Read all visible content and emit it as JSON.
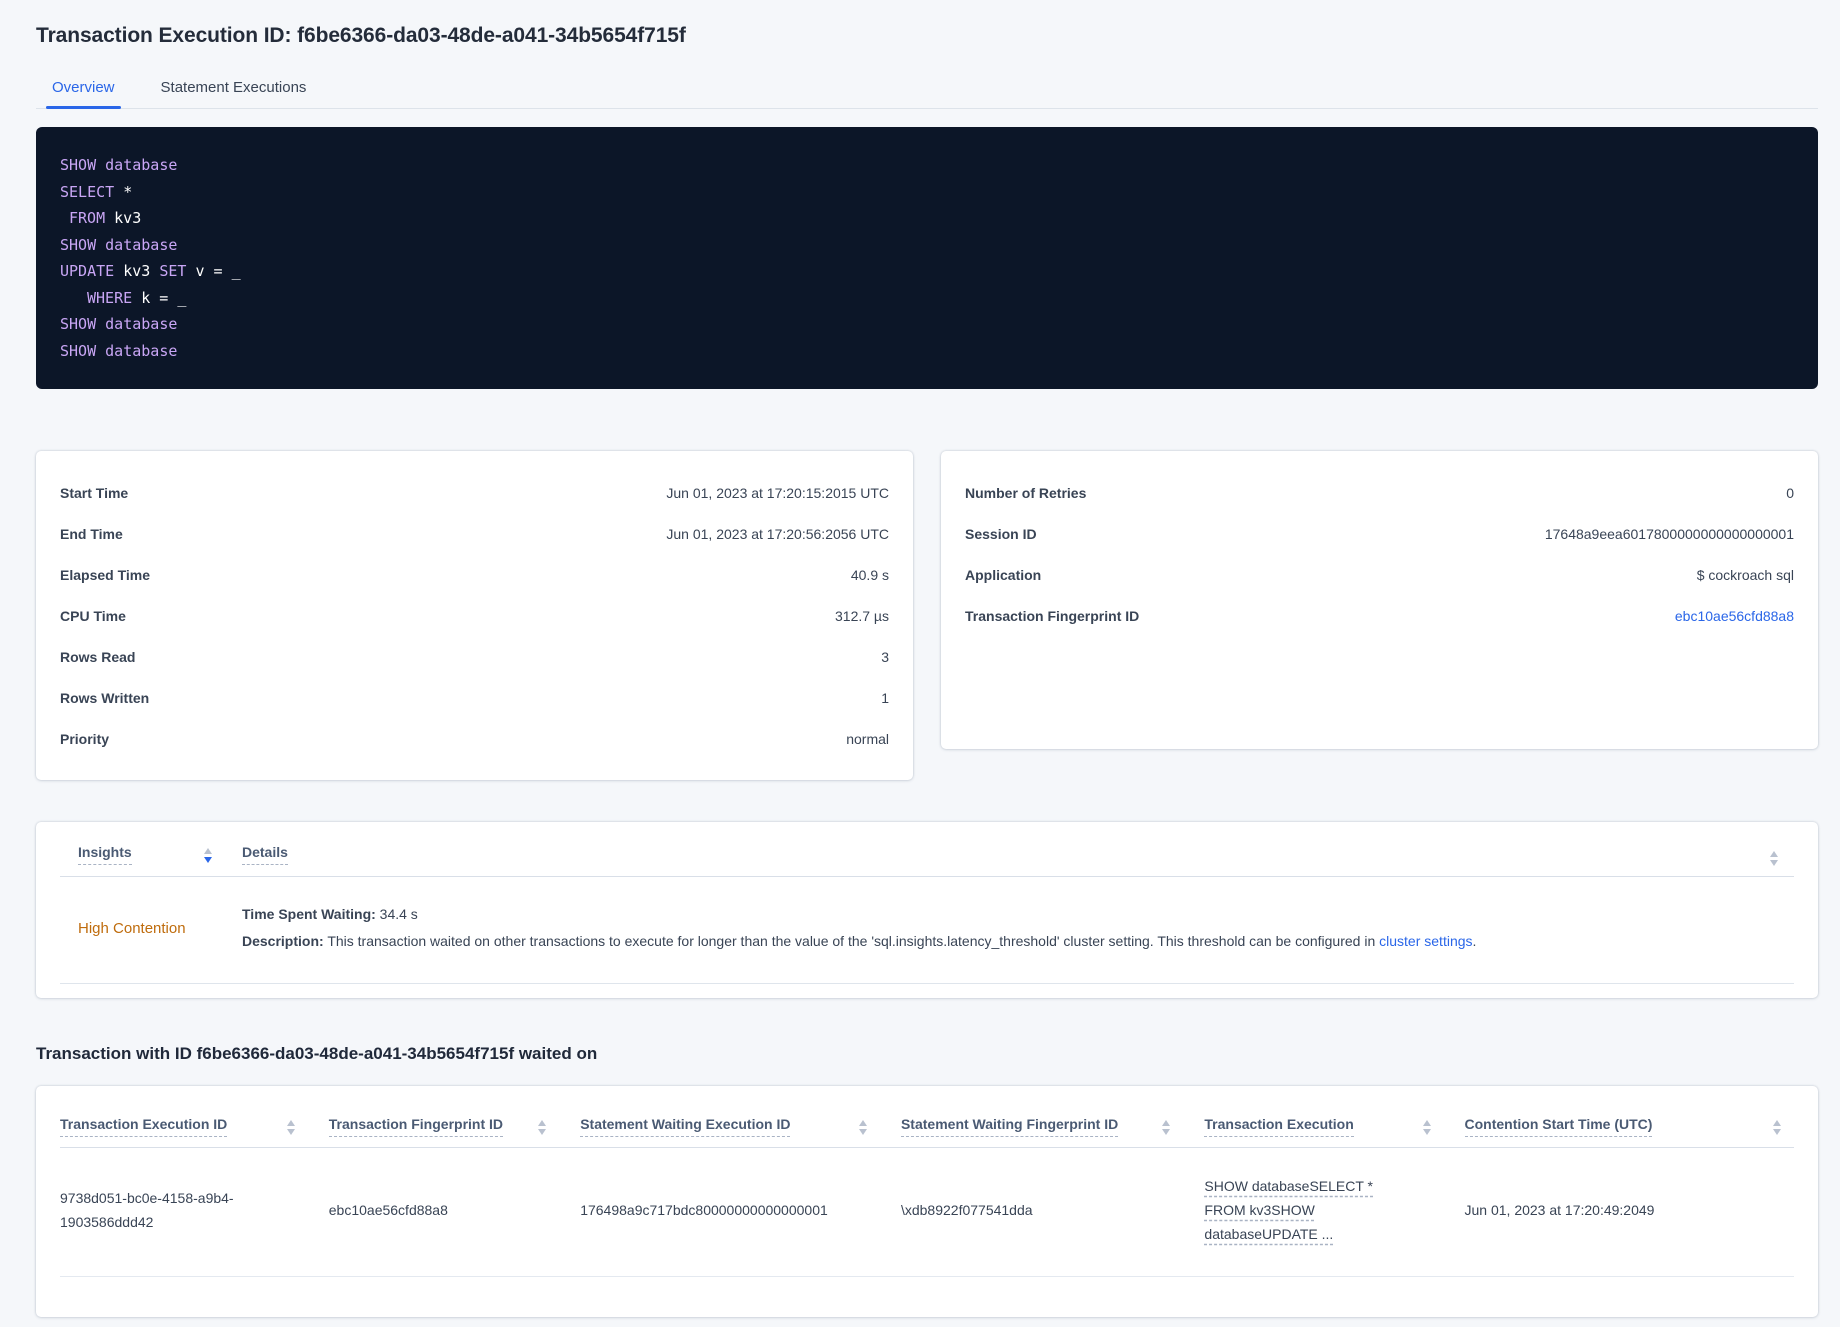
{
  "header": {
    "title": "Transaction Execution ID: f6be6366-da03-48de-a041-34b5654f715f"
  },
  "tabs": [
    {
      "label": "Overview",
      "active": true
    },
    {
      "label": "Statement Executions",
      "active": false
    }
  ],
  "sql_box": {
    "lines": [
      {
        "indent": 0,
        "tokens": [
          {
            "text": "SHOW",
            "kw": true
          },
          {
            "text": "database",
            "kw": true
          }
        ]
      },
      {
        "indent": 0,
        "tokens": [
          {
            "text": "SELECT",
            "kw": true
          },
          {
            "text": "*",
            "kw": false
          }
        ]
      },
      {
        "indent": 1,
        "tokens": [
          {
            "text": "FROM",
            "kw": true
          },
          {
            "text": "kv3",
            "kw": false
          }
        ]
      },
      {
        "indent": 0,
        "tokens": [
          {
            "text": "SHOW",
            "kw": true
          },
          {
            "text": "database",
            "kw": true
          }
        ]
      },
      {
        "indent": 0,
        "tokens": [
          {
            "text": "UPDATE",
            "kw": true
          },
          {
            "text": "kv3",
            "kw": false
          },
          {
            "text": "SET",
            "kw": true
          },
          {
            "text": "v",
            "kw": false
          },
          {
            "text": "=",
            "kw": false
          },
          {
            "text": "_",
            "kw": false
          }
        ]
      },
      {
        "indent": 3,
        "tokens": [
          {
            "text": "WHERE",
            "kw": true
          },
          {
            "text": "k",
            "kw": false
          },
          {
            "text": "=",
            "kw": false
          },
          {
            "text": "_",
            "kw": false
          }
        ]
      },
      {
        "indent": 0,
        "tokens": [
          {
            "text": "SHOW",
            "kw": true
          },
          {
            "text": "database",
            "kw": true
          }
        ]
      },
      {
        "indent": 0,
        "tokens": [
          {
            "text": "SHOW",
            "kw": true
          },
          {
            "text": "database",
            "kw": true
          }
        ]
      }
    ]
  },
  "summary_left": {
    "rows": [
      {
        "label": "Start Time",
        "value": "Jun 01, 2023 at 17:20:15:2015 UTC"
      },
      {
        "label": "End Time",
        "value": "Jun 01, 2023 at 17:20:56:2056 UTC"
      },
      {
        "label": "Elapsed Time",
        "value": "40.9 s"
      },
      {
        "label": "CPU Time",
        "value": "312.7 µs"
      },
      {
        "label": "Rows Read",
        "value": "3"
      },
      {
        "label": "Rows Written",
        "value": "1"
      },
      {
        "label": "Priority",
        "value": "normal"
      }
    ]
  },
  "summary_right": {
    "rows": [
      {
        "label": "Number of Retries",
        "value": "0"
      },
      {
        "label": "Session ID",
        "value": "17648a9eea6017800000000000000001"
      },
      {
        "label": "Application",
        "value": "$ cockroach sql"
      },
      {
        "label": "Transaction Fingerprint ID",
        "value": "ebc10ae56cfd88a8",
        "link": true
      }
    ]
  },
  "insights_table": {
    "columns": [
      "Insights",
      "Details"
    ],
    "sort": "descending",
    "row": {
      "insight": "High Contention",
      "waiting_label": "Time Spent Waiting:",
      "waiting_value": " 34.4 s",
      "description_label": "Description:",
      "description_text": " This transaction waited on other transactions to execute for longer than the value of the 'sql.insights.latency_threshold' cluster setting. This threshold can be configured in ",
      "description_link": "cluster settings",
      "description_suffix": "."
    }
  },
  "waited_section": {
    "heading": "Transaction with ID f6be6366-da03-48de-a041-34b5654f715f waited on"
  },
  "waited_table": {
    "columns": [
      "Transaction Execution ID",
      "Transaction Fingerprint ID",
      "Statement Waiting Execution ID",
      "Statement Waiting Fingerprint ID",
      "Transaction Execution",
      "Contention Start Time (UTC)"
    ],
    "rows": [
      {
        "transaction_execution_id": "9738d051-bc0e-4158-a9b4-1903586ddd42",
        "transaction_fingerprint_id": "ebc10ae56cfd88a8",
        "statement_waiting_execution_id": "176498a9c717bdc80000000000000001",
        "statement_waiting_fingerprint_id": "\\xdb8922f077541dda",
        "transaction_execution": "SHOW databaseSELECT * FROM kv3SHOW databaseUPDATE ...",
        "contention_start_time": "Jun 01, 2023 at 17:20:49:2049"
      }
    ]
  },
  "colors": {
    "accent_blue": "#2a66e8",
    "insight_orange": "#bf6c0d",
    "code_bg": "#0c1628",
    "code_keyword": "#c9a6f5",
    "code_plain": "#ffffff"
  }
}
